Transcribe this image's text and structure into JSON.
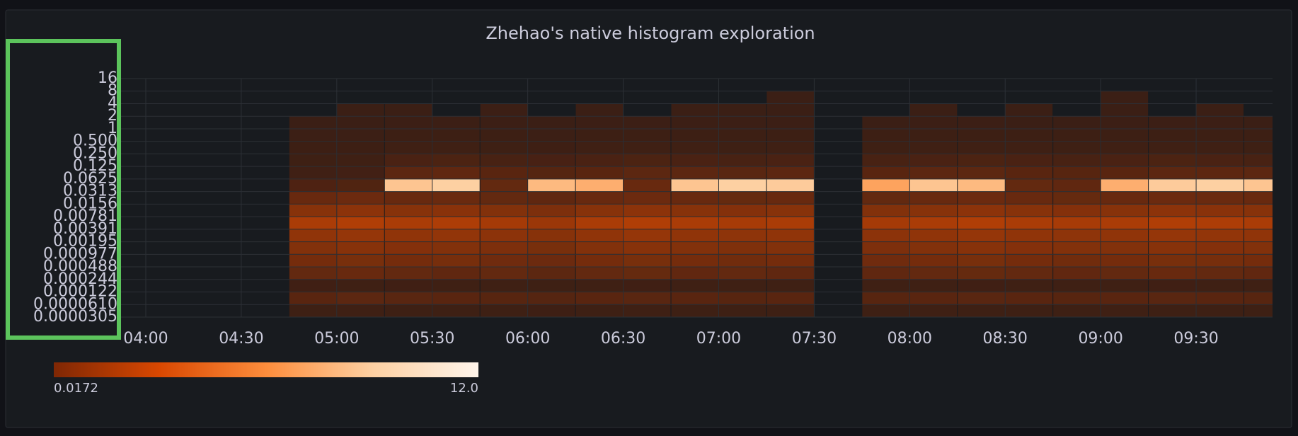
{
  "chart_data": {
    "type": "heatmap",
    "title": "Zhehao's native histogram exploration",
    "x": [
      240,
      255,
      270,
      285,
      300,
      315,
      330,
      345,
      360,
      375,
      390,
      405,
      420,
      435,
      450,
      465,
      480,
      495,
      510,
      525,
      540,
      555,
      570,
      585
    ],
    "xlim": [
      232,
      594
    ],
    "xticks": [
      {
        "value": 240,
        "label": "04:00"
      },
      {
        "value": 270,
        "label": "04:30"
      },
      {
        "value": 300,
        "label": "05:00"
      },
      {
        "value": 330,
        "label": "05:30"
      },
      {
        "value": 360,
        "label": "06:00"
      },
      {
        "value": 390,
        "label": "06:30"
      },
      {
        "value": 420,
        "label": "07:00"
      },
      {
        "value": 450,
        "label": "07:30"
      },
      {
        "value": 480,
        "label": "08:00"
      },
      {
        "value": 510,
        "label": "08:30"
      },
      {
        "value": 540,
        "label": "09:00"
      },
      {
        "value": 570,
        "label": "09:30"
      }
    ],
    "log_y": true,
    "ylim": [
      3.0517578125e-05,
      16
    ],
    "yticks": [
      {
        "value": 3.0517578125e-05,
        "label": "0.0000305"
      },
      {
        "value": 6.103515625e-05,
        "label": "0.0000610"
      },
      {
        "value": 0.0001220703125,
        "label": "0.000122"
      },
      {
        "value": 0.000244140625,
        "label": "0.000244"
      },
      {
        "value": 0.00048828125,
        "label": "0.000488"
      },
      {
        "value": 0.0009765625,
        "label": "0.000977"
      },
      {
        "value": 0.001953125,
        "label": "0.00195"
      },
      {
        "value": 0.00390625,
        "label": "0.00391"
      },
      {
        "value": 0.0078125,
        "label": "0.00781"
      },
      {
        "value": 0.015625,
        "label": "0.0156"
      },
      {
        "value": 0.03125,
        "label": "0.0313"
      },
      0.0625,
      0.125,
      {
        "value": 0.25,
        "label": "0.250"
      },
      {
        "value": 0.5,
        "label": "0.500"
      },
      1,
      2,
      4,
      8,
      16
    ],
    "values": [
      [
        null,
        null,
        null,
        0.1,
        0.12,
        0.1,
        0.11,
        0.1,
        0.08,
        0.1,
        0.12,
        0.1,
        0.11,
        0.1,
        null,
        0.1,
        0.12,
        0.1,
        0.11,
        0.1,
        0.12,
        0.1,
        0.11,
        0.1
      ],
      [
        null,
        null,
        null,
        0.9,
        1.0,
        0.95,
        0.9,
        0.85,
        0.8,
        0.9,
        0.95,
        0.9,
        0.85,
        0.9,
        null,
        0.85,
        0.9,
        0.95,
        0.9,
        0.85,
        0.9,
        0.95,
        0.9,
        0.85
      ],
      [
        null,
        null,
        null,
        0.15,
        0.12,
        0.16,
        0.14,
        0.12,
        0.1,
        0.14,
        0.16,
        0.12,
        0.14,
        0.12,
        null,
        0.12,
        0.14,
        0.16,
        0.14,
        0.12,
        0.14,
        0.16,
        0.14,
        0.12
      ],
      [
        null,
        null,
        null,
        1.2,
        1.3,
        1.2,
        1.1,
        1.2,
        1.0,
        1.2,
        1.25,
        1.15,
        1.2,
        1.1,
        null,
        1.1,
        1.2,
        1.25,
        1.2,
        1.15,
        1.2,
        1.3,
        1.2,
        1.15
      ],
      [
        null,
        null,
        null,
        1.6,
        1.7,
        1.6,
        1.65,
        1.5,
        1.4,
        1.6,
        1.7,
        1.6,
        1.55,
        1.6,
        null,
        1.5,
        1.6,
        1.7,
        1.6,
        1.55,
        1.6,
        1.7,
        1.65,
        1.6
      ],
      [
        null,
        null,
        null,
        1.9,
        2.0,
        1.95,
        1.9,
        1.8,
        1.7,
        1.9,
        2.0,
        1.9,
        1.85,
        1.9,
        null,
        1.8,
        1.9,
        2.0,
        1.95,
        1.9,
        1.9,
        2.0,
        1.95,
        1.9
      ],
      [
        null,
        null,
        null,
        2.2,
        2.3,
        2.2,
        2.25,
        2.1,
        2.0,
        2.2,
        2.3,
        2.2,
        2.15,
        2.2,
        null,
        2.1,
        2.2,
        2.3,
        2.2,
        2.15,
        2.2,
        2.3,
        2.25,
        2.2
      ],
      [
        null,
        null,
        null,
        2.7,
        2.8,
        2.7,
        2.75,
        2.6,
        2.4,
        2.7,
        2.8,
        2.7,
        2.65,
        2.7,
        null,
        2.6,
        2.7,
        2.8,
        2.7,
        2.65,
        2.7,
        2.8,
        2.75,
        2.7
      ],
      [
        null,
        null,
        null,
        2.0,
        2.1,
        2.0,
        2.05,
        1.9,
        1.8,
        2.0,
        2.1,
        2.0,
        1.95,
        2.0,
        null,
        1.9,
        2.0,
        2.1,
        2.0,
        1.95,
        2.0,
        2.1,
        2.05,
        2.0
      ],
      [
        null,
        null,
        null,
        1.3,
        1.4,
        1.3,
        1.35,
        1.2,
        1.1,
        1.3,
        1.4,
        1.3,
        1.25,
        1.3,
        null,
        1.2,
        1.3,
        1.4,
        1.3,
        1.25,
        1.3,
        1.4,
        1.35,
        1.3
      ],
      [
        null,
        null,
        null,
        0.6,
        0.7,
        8.5,
        9.0,
        1.2,
        8.0,
        7.5,
        1.3,
        8.5,
        9.0,
        8.8,
        null,
        7.0,
        8.5,
        8.0,
        1.2,
        1.1,
        7.5,
        8.8,
        9.0,
        8.5
      ],
      [
        null,
        null,
        null,
        0.2,
        0.25,
        1.0,
        1.1,
        0.9,
        0.8,
        0.9,
        1.0,
        1.0,
        0.95,
        1.0,
        null,
        0.9,
        1.0,
        1.0,
        0.9,
        0.85,
        0.9,
        1.0,
        1.05,
        1.0
      ],
      [
        null,
        null,
        null,
        0.1,
        0.12,
        0.5,
        0.55,
        0.45,
        0.4,
        0.5,
        0.55,
        0.5,
        0.45,
        0.5,
        null,
        0.45,
        0.5,
        0.55,
        0.5,
        0.45,
        0.5,
        0.55,
        0.5,
        0.45
      ],
      [
        null,
        null,
        null,
        0.05,
        0.06,
        0.12,
        0.14,
        0.1,
        0.08,
        0.12,
        0.14,
        0.12,
        0.1,
        0.12,
        null,
        0.1,
        0.12,
        0.14,
        0.12,
        0.1,
        0.12,
        0.14,
        0.12,
        0.1
      ],
      [
        null,
        null,
        null,
        0.03,
        0.04,
        0.06,
        0.07,
        0.05,
        0.04,
        0.06,
        0.07,
        0.06,
        0.05,
        0.06,
        null,
        0.05,
        0.06,
        0.07,
        0.06,
        0.05,
        0.06,
        0.07,
        0.06,
        0.05
      ],
      [
        null,
        null,
        null,
        0.02,
        0.02,
        0.03,
        0.03,
        0.04,
        0.02,
        0.03,
        0.03,
        0.04,
        0.03,
        0.03,
        null,
        0.02,
        0.03,
        0.03,
        0.02,
        0.02,
        0.03,
        0.03,
        0.03,
        0.02
      ],
      [
        null,
        null,
        null,
        null,
        0.02,
        0.02,
        null,
        0.03,
        null,
        0.02,
        null,
        0.02,
        0.02,
        0.02,
        null,
        null,
        0.02,
        null,
        0.02,
        null,
        0.02,
        null,
        0.02,
        null
      ],
      [
        null,
        null,
        null,
        null,
        null,
        null,
        null,
        null,
        null,
        null,
        null,
        null,
        null,
        0.02,
        null,
        null,
        null,
        null,
        null,
        null,
        0.02,
        null,
        null,
        null
      ],
      [
        null,
        null,
        null,
        null,
        null,
        null,
        null,
        null,
        null,
        null,
        null,
        null,
        null,
        null,
        null,
        null,
        null,
        null,
        null,
        null,
        null,
        null,
        null,
        null
      ]
    ],
    "colors": [
      "#7f2704",
      "#d94801",
      "#fd8d3c",
      "#fdd0a2",
      "#fff5eb"
    ],
    "colorbar_ticks": [
      0.0172,
      {
        "value": 12,
        "label": "12.0"
      }
    ],
    "grid": true
  }
}
